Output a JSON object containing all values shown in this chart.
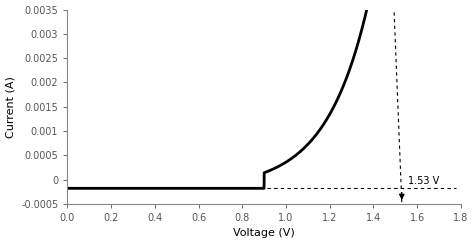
{
  "xlabel": "Voltage (V)",
  "ylabel": "Current (A)",
  "xlim": [
    0,
    1.8
  ],
  "ylim": [
    -0.0005,
    0.0035
  ],
  "xticks": [
    0,
    0.2,
    0.4,
    0.6,
    0.8,
    1.0,
    1.2,
    1.4,
    1.6,
    1.8
  ],
  "yticks": [
    -0.0005,
    0,
    0.0005,
    0.001,
    0.0015,
    0.002,
    0.0025,
    0.003,
    0.0035
  ],
  "ytick_labels": [
    "-0.0005",
    "0",
    "0.0005",
    "0.001",
    "0.0015",
    "0.002",
    "0.0025",
    "0.003",
    "0.0035"
  ],
  "annotation_voltage": 1.53,
  "annotation_text": "1.53 V",
  "baseline_current": -0.00018,
  "curve_color": "#000000",
  "annotation_color": "#000000",
  "background_color": "#ffffff",
  "tick_label_fontsize": 7,
  "axis_label_fontsize": 8,
  "curve_start_rise": 0.9,
  "curve_exp_scale": 5.2,
  "curve_exp_amp": 0.00032
}
